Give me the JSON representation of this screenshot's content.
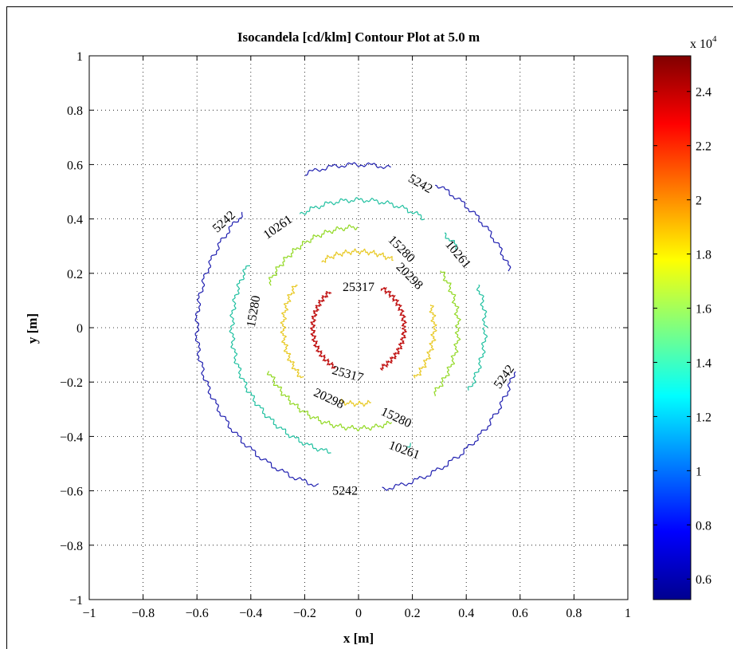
{
  "chart_data": {
    "type": "contour",
    "title": "Isocandela [cd/klm] Contour Plot at 5.0 m",
    "xlabel": "x [m]",
    "ylabel": "y [m]",
    "xlim": [
      -1,
      1
    ],
    "ylim": [
      -1,
      1
    ],
    "grid": true,
    "x_ticks": [
      "−1",
      "−0.8",
      "−0.6",
      "−0.4",
      "−0.2",
      "0",
      "0.2",
      "0.4",
      "0.6",
      "0.8",
      "1"
    ],
    "y_ticks": [
      "1",
      "0.8",
      "0.6",
      "0.4",
      "0.2",
      "0",
      "−0.2",
      "−0.4",
      "−0.6",
      "−0.8",
      "−1"
    ],
    "x_tick_values": [
      -1,
      -0.8,
      -0.6,
      -0.4,
      -0.2,
      0,
      0.2,
      0.4,
      0.6,
      0.8,
      1
    ],
    "y_tick_values": [
      1,
      0.8,
      0.6,
      0.4,
      0.2,
      0,
      -0.2,
      -0.4,
      -0.6,
      -0.8,
      -1
    ],
    "levels": [
      {
        "value": 5242,
        "label": "5242",
        "color": "#2020b0",
        "radius": 0.6,
        "gaps": [
          [
            62,
            78
          ],
          [
            110,
            135
          ],
          [
            256,
            278
          ],
          [
            345,
            20
          ]
        ],
        "labels": [
          {
            "x": 0.23,
            "y": 0.53,
            "angle": 30
          },
          {
            "x": -0.5,
            "y": 0.39,
            "angle": -42
          },
          {
            "x": 0.54,
            "y": -0.18,
            "angle": -55
          },
          {
            "x": -0.05,
            "y": -0.6,
            "angle": 0
          }
        ]
      },
      {
        "value": 10261,
        "label": "10261",
        "color": "#20c0a0",
        "radius": 0.47,
        "gaps": [
          [
            20,
            38
          ],
          [
            48,
            58
          ],
          [
            118,
            150
          ],
          [
            258,
            292
          ],
          [
            295,
            330
          ]
        ],
        "labels": [
          {
            "x": -0.3,
            "y": 0.37,
            "angle": -35
          },
          {
            "x": 0.37,
            "y": 0.27,
            "angle": 50
          },
          {
            "x": 0.17,
            "y": -0.45,
            "angle": 20
          }
        ]
      },
      {
        "value": 15280,
        "label": "15280",
        "color": "#90d820",
        "radius": 0.37,
        "gaps": [
          [
            35,
            90
          ],
          [
            155,
            205
          ],
          [
            290,
            318
          ]
        ],
        "labels": [
          {
            "x": 0.16,
            "y": 0.29,
            "angle": 45
          },
          {
            "x": -0.39,
            "y": 0.06,
            "angle": -80
          },
          {
            "x": 0.14,
            "y": -0.33,
            "angle": 25
          }
        ]
      },
      {
        "value": 20298,
        "label": "20298",
        "color": "#e8c820",
        "radius": 0.28,
        "gaps": [
          [
            18,
            62
          ],
          [
            120,
            145
          ],
          [
            222,
            255
          ],
          [
            280,
            318
          ]
        ],
        "labels": [
          {
            "x": 0.19,
            "y": 0.19,
            "angle": 45
          },
          {
            "x": -0.11,
            "y": -0.26,
            "angle": 25
          }
        ]
      },
      {
        "value": 25317,
        "label": "25317",
        "color": "#c01010",
        "radius": 0.17,
        "gaps": [
          [
            60,
            128
          ],
          [
            240,
            298
          ]
        ],
        "labels": [
          {
            "x": 0.0,
            "y": 0.15,
            "angle": 0
          },
          {
            "x": -0.04,
            "y": -0.17,
            "angle": 15
          }
        ]
      }
    ],
    "colorbar": {
      "min": 5242,
      "max": 25317,
      "exponent_label": "x 10",
      "exponent_power": "4",
      "ticks": [
        {
          "value": 0.6,
          "label": "0.6"
        },
        {
          "value": 0.8,
          "label": "0.8"
        },
        {
          "value": 1.0,
          "label": "1"
        },
        {
          "value": 1.2,
          "label": "1.2"
        },
        {
          "value": 1.4,
          "label": "1.4"
        },
        {
          "value": 1.6,
          "label": "1.6"
        },
        {
          "value": 1.8,
          "label": "1.8"
        },
        {
          "value": 2.0,
          "label": "2"
        },
        {
          "value": 2.2,
          "label": "2.2"
        },
        {
          "value": 2.4,
          "label": "2.4"
        }
      ],
      "colormap": "jet"
    }
  }
}
